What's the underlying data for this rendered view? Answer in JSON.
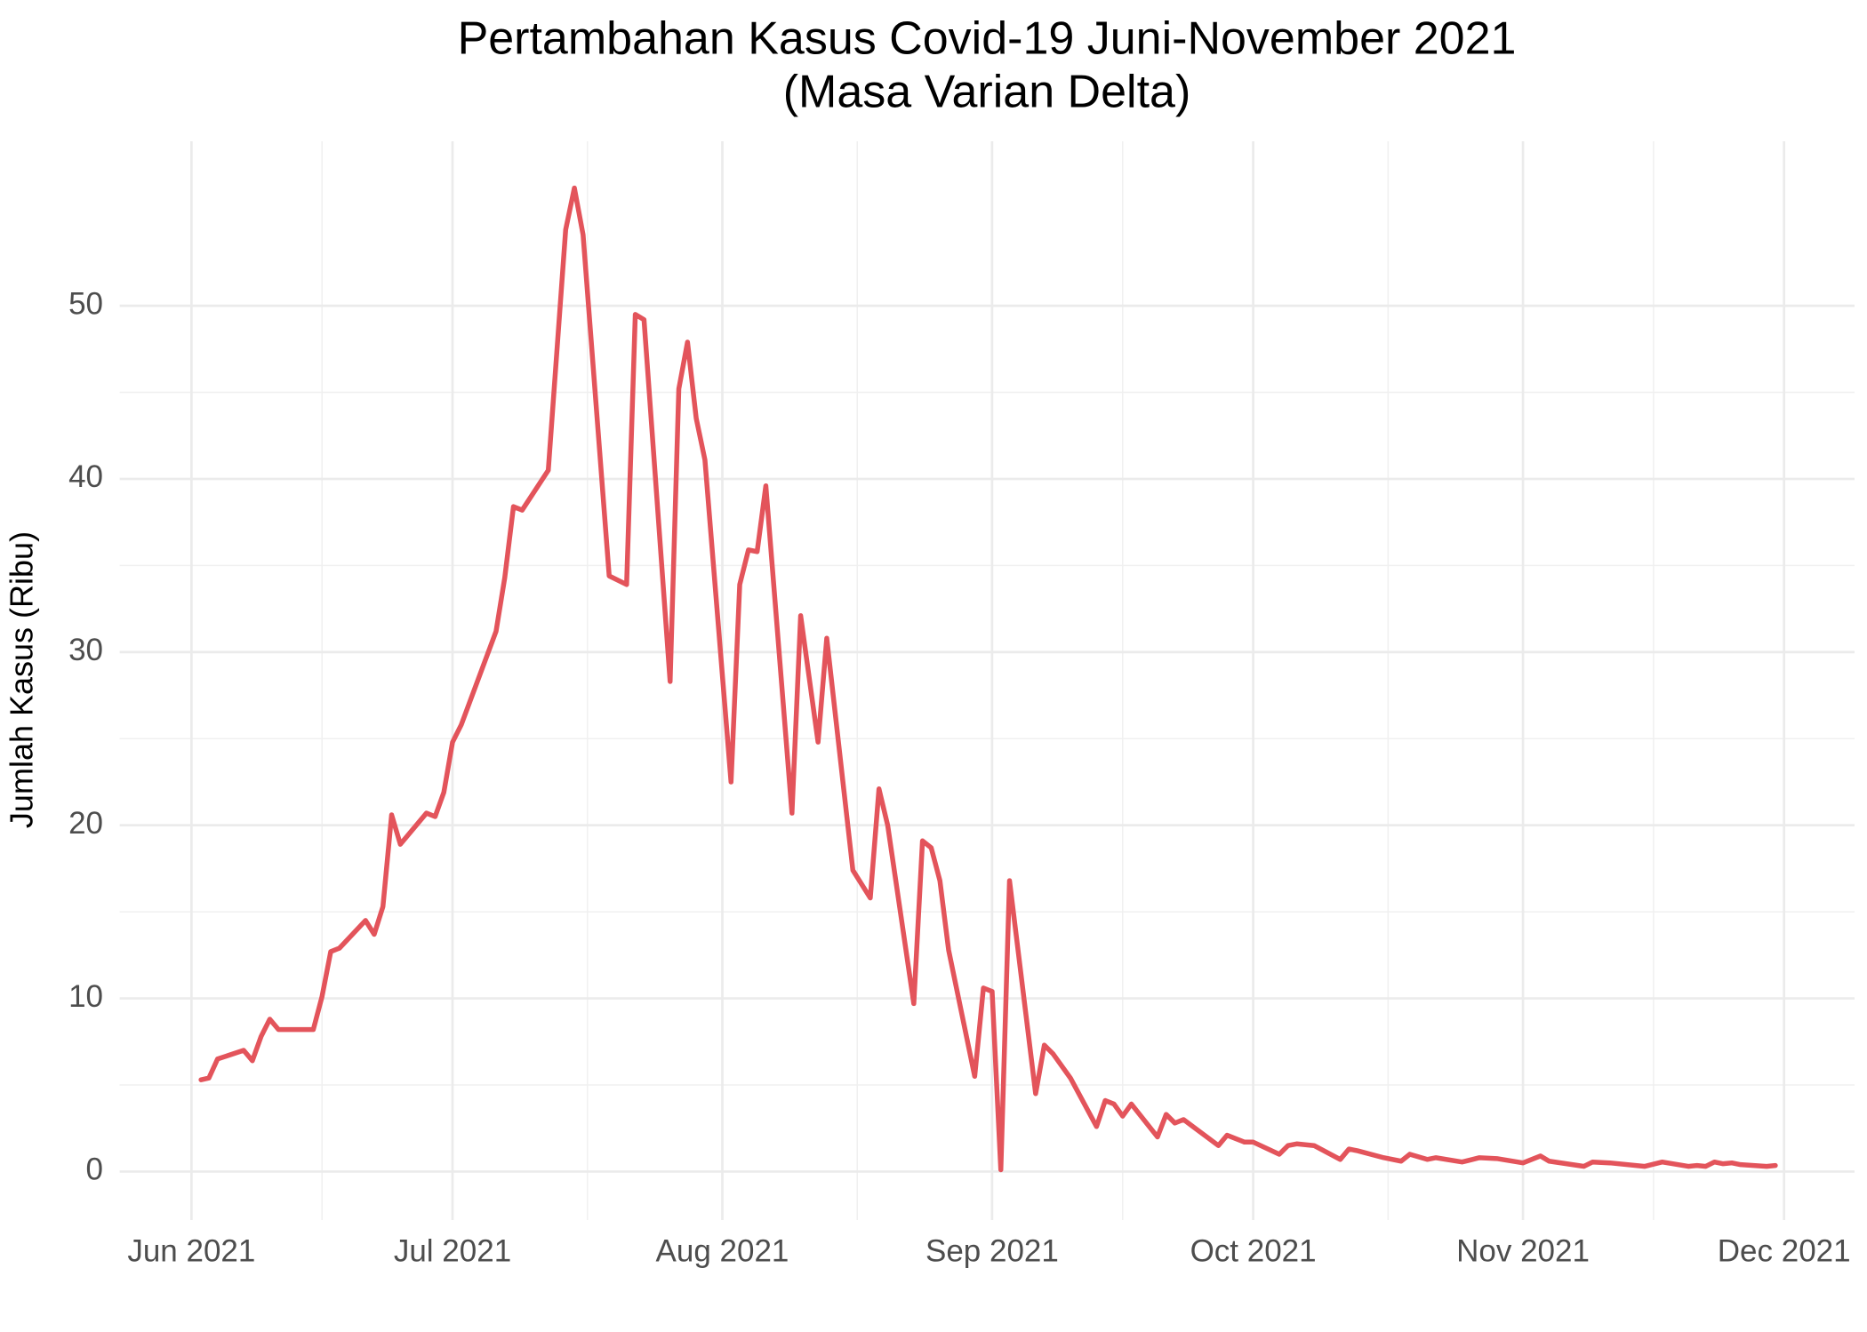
{
  "chart_data": {
    "type": "line",
    "title": "Pertambahan Kasus Covid-19 Juni-November 2021",
    "subtitle": "(Masa Varian Delta)",
    "y_label": "Jumlah Kasus (Ribu)",
    "color": "#e3545b",
    "grid": true,
    "xlim": [
      -8.25,
      191.1
    ],
    "xticks": [
      {
        "value": 0,
        "label": "Jun 2021"
      },
      {
        "value": 30,
        "label": "Jul 2021"
      },
      {
        "value": 61,
        "label": "Aug 2021"
      },
      {
        "value": 92,
        "label": "Sep 2021"
      },
      {
        "value": 122,
        "label": "Oct 2021"
      },
      {
        "value": 153,
        "label": "Nov 2021"
      },
      {
        "value": 183,
        "label": "Dec 2021"
      }
    ],
    "ylim": [
      -2.8,
      59.5
    ],
    "yticks": [
      0,
      10,
      20,
      30,
      40,
      50
    ],
    "x": [
      1.1,
      2,
      3,
      6,
      7,
      8,
      9,
      10,
      11,
      14,
      15,
      16,
      17,
      20,
      21,
      22,
      23,
      24,
      27,
      28,
      29,
      30,
      31,
      35,
      36,
      37,
      38,
      41,
      43,
      44,
      45,
      48,
      50,
      51,
      52,
      55,
      56,
      57,
      58,
      59,
      62,
      63,
      64,
      65,
      66,
      69,
      70,
      72,
      73,
      76,
      78,
      79,
      80,
      83,
      84,
      85,
      86,
      87,
      90,
      91,
      92,
      93,
      94,
      97,
      98,
      99,
      101,
      104,
      105,
      106,
      107,
      108,
      111,
      112,
      113,
      114,
      118,
      119,
      120,
      121,
      122,
      125,
      126,
      127,
      129,
      132,
      133,
      134,
      137,
      139,
      140,
      142,
      143,
      146,
      148,
      150,
      153,
      155,
      156,
      160,
      161,
      163,
      167,
      169,
      172,
      173,
      174,
      175,
      176,
      177,
      178,
      181,
      182
    ],
    "values": [
      5.3,
      5.4,
      6.5,
      7.0,
      6.4,
      7.8,
      8.8,
      8.2,
      8.2,
      8.2,
      10.1,
      12.7,
      12.9,
      14.5,
      13.7,
      15.3,
      20.6,
      18.9,
      20.7,
      20.5,
      21.9,
      24.8,
      25.8,
      31.2,
      34.3,
      38.4,
      38.2,
      40.5,
      54.4,
      56.8,
      54.1,
      34.4,
      33.9,
      49.5,
      49.2,
      28.3,
      45.2,
      47.9,
      43.5,
      41.1,
      22.5,
      33.9,
      35.9,
      35.8,
      39.6,
      20.7,
      32.1,
      24.8,
      30.8,
      17.4,
      15.8,
      22.1,
      20.0,
      9.7,
      19.1,
      18.7,
      16.8,
      12.8,
      5.5,
      10.6,
      10.4,
      0.1,
      16.8,
      4.5,
      7.3,
      6.8,
      5.4,
      2.6,
      4.1,
      3.9,
      3.2,
      3.9,
      2.0,
      3.3,
      2.8,
      3.0,
      1.5,
      2.1,
      1.9,
      1.7,
      1.7,
      1.0,
      1.5,
      1.6,
      1.5,
      0.7,
      1.3,
      1.2,
      0.8,
      0.6,
      1.0,
      0.7,
      0.8,
      0.55,
      0.8,
      0.75,
      0.5,
      0.9,
      0.6,
      0.3,
      0.55,
      0.5,
      0.3,
      0.55,
      0.3,
      0.35,
      0.3,
      0.55,
      0.45,
      0.5,
      0.4,
      0.3,
      0.35
    ]
  }
}
